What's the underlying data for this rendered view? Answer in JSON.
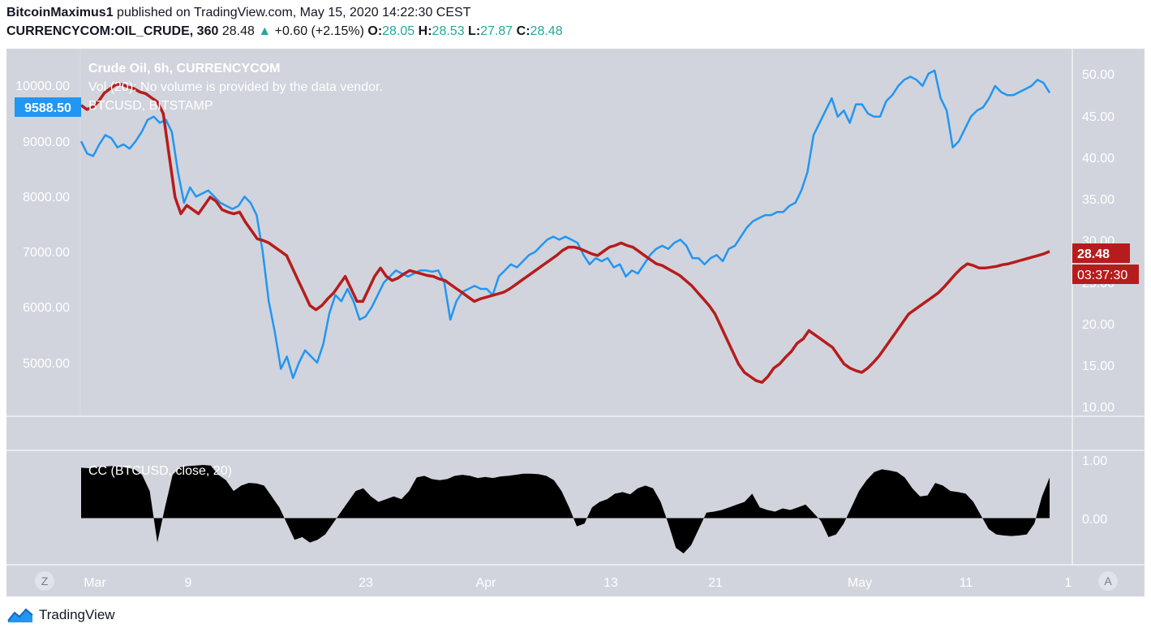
{
  "header": {
    "author": "BitcoinMaximus1",
    "published_text": "published on TradingView.com, May 15, 2020 14:22:30 CEST",
    "symbol": "CURRENCYCOM:OIL_CRUDE, 360",
    "last": "28.48",
    "change": "+0.60 (+2.15%)",
    "open_label": "O:",
    "open": "28.05",
    "high_label": "H:",
    "high": "28.53",
    "low_label": "L:",
    "low": "27.87",
    "close_label": "C:",
    "close": "28.48"
  },
  "legend": {
    "main": "Crude Oil, 6h, CURRENCYCOM",
    "volume": "Vol (20): No volume is provided by the data vendor.",
    "compare": "BTCUSD, BITSTAMP",
    "indicator": "CC (BTCUSD, close, 20)"
  },
  "price_badges": {
    "btc": "9588.50",
    "oil": "28.48",
    "countdown": "03:37:30"
  },
  "left_axis_ticks": [
    "10000.00",
    "9000.00",
    "8000.00",
    "7000.00",
    "6000.00",
    "5000.00"
  ],
  "right_axis_ticks": [
    "50.00",
    "45.00",
    "40.00",
    "35.00",
    "30.00",
    "25.00",
    "20.00",
    "15.00",
    "10.00"
  ],
  "cc_axis_ticks": [
    "1.00",
    "0.00"
  ],
  "time_axis_labels": [
    "Mar",
    "9",
    "23",
    "Apr",
    "13",
    "21",
    "May",
    "11",
    "1"
  ],
  "buttons": {
    "left": "Z",
    "right": "A"
  },
  "footer_brand": "TradingView",
  "colors": {
    "btc": "#2196f3",
    "oil": "#b71c1c",
    "badge_btc": "#2196f3",
    "badge_oil": "#b71c1c",
    "background": "#d1d4dc"
  },
  "chart_data": {
    "type": "line",
    "x_labels": [
      "Mar",
      "9",
      "23",
      "Apr",
      "13",
      "21",
      "May",
      "11"
    ],
    "series": [
      {
        "name": "BTCUSD, BITSTAMP",
        "axis": "left",
        "ylim": [
          4500,
          10200
        ],
        "values": [
          8800,
          8600,
          8560,
          8750,
          8900,
          8850,
          8700,
          8750,
          8680,
          8800,
          8950,
          9150,
          9200,
          9100,
          9150,
          8950,
          8300,
          7800,
          8050,
          7900,
          7950,
          8000,
          7900,
          7800,
          7750,
          7700,
          7750,
          7900,
          7800,
          7600,
          7000,
          6200,
          5700,
          5100,
          5300,
          4950,
          5200,
          5400,
          5300,
          5200,
          5500,
          6000,
          6300,
          6200,
          6400,
          6200,
          5900,
          5950,
          6100,
          6300,
          6500,
          6600,
          6700,
          6650,
          6600,
          6650,
          6700,
          6700,
          6680,
          6700,
          6500,
          5900,
          6200,
          6350,
          6400,
          6450,
          6400,
          6400,
          6300,
          6600,
          6700,
          6800,
          6750,
          6850,
          6950,
          7000,
          7100,
          7200,
          7250,
          7200,
          7250,
          7200,
          7150,
          6950,
          6800,
          6900,
          6850,
          6900,
          6750,
          6800,
          6600,
          6700,
          6650,
          6800,
          6950,
          7050,
          7100,
          7050,
          7150,
          7200,
          7100,
          6900,
          6900,
          6800,
          6900,
          6950,
          6850,
          7050,
          7100,
          7250,
          7400,
          7500,
          7550,
          7600,
          7600,
          7650,
          7650,
          7750,
          7800,
          8000,
          8300,
          8900,
          9100,
          9300,
          9500,
          9200,
          9300,
          9100,
          9400,
          9400,
          9250,
          9200,
          9200,
          9450,
          9550,
          9700,
          9800,
          9850,
          9800,
          9700,
          9900,
          9950,
          9500,
          9300,
          8700,
          8800,
          9000,
          9200,
          9300,
          9350,
          9500,
          9700,
          9600,
          9550,
          9550,
          9600,
          9650,
          9700,
          9800,
          9750,
          9588.5
        ]
      },
      {
        "name": "Crude Oil, 6h, CURRENCYCOM",
        "axis": "right",
        "ylim": [
          10,
          52
        ],
        "values": [
          46.0,
          45.5,
          45.8,
          46.5,
          47.5,
          48.0,
          48.5,
          48.5,
          48.2,
          48.0,
          47.6,
          47.4,
          46.9,
          46.4,
          45.0,
          40.0,
          35.0,
          33.0,
          34.0,
          33.5,
          33.0,
          34.0,
          35.0,
          34.5,
          33.5,
          33.2,
          33.0,
          33.2,
          32.0,
          31.0,
          30.0,
          29.8,
          29.5,
          29.0,
          28.5,
          28.0,
          26.5,
          25.0,
          23.5,
          22.0,
          21.5,
          22.0,
          22.8,
          23.5,
          24.5,
          25.5,
          24.0,
          22.5,
          22.5,
          24.0,
          25.5,
          26.5,
          25.5,
          25.0,
          25.3,
          25.8,
          26.2,
          26.0,
          25.8,
          25.6,
          25.5,
          25.2,
          25.0,
          24.5,
          24.0,
          23.5,
          23.0,
          22.5,
          22.8,
          23.0,
          23.2,
          23.4,
          23.6,
          24.0,
          24.5,
          25.0,
          25.5,
          26.0,
          26.5,
          27.0,
          27.5,
          28.0,
          28.6,
          29.0,
          29.0,
          28.8,
          28.5,
          28.2,
          28.0,
          28.5,
          29.0,
          29.2,
          29.5,
          29.2,
          29.0,
          28.5,
          28.0,
          27.5,
          27.0,
          26.8,
          26.4,
          26.0,
          25.6,
          25.0,
          24.4,
          23.6,
          22.8,
          22.0,
          21.0,
          19.5,
          18.0,
          16.5,
          15.0,
          14.0,
          13.5,
          13.0,
          12.8,
          13.5,
          14.5,
          15.0,
          15.8,
          16.5,
          17.5,
          18.0,
          19.0,
          18.5,
          18.0,
          17.5,
          17.0,
          16.0,
          15.0,
          14.5,
          14.2,
          14.0,
          14.5,
          15.2,
          16.0,
          17.0,
          18.0,
          19.0,
          20.0,
          21.0,
          21.5,
          22.0,
          22.5,
          23.0,
          23.5,
          24.2,
          25.0,
          25.8,
          26.5,
          27.0,
          26.8,
          26.5,
          26.5,
          26.6,
          26.7,
          26.9,
          27.0,
          27.2,
          27.4,
          27.6,
          27.8,
          28.0,
          28.2,
          28.48
        ]
      },
      {
        "name": "CC (BTCUSD, close, 20)",
        "axis": "cc",
        "ylim": [
          -0.8,
          1.1
        ],
        "values": [
          0.93,
          0.92,
          0.94,
          0.95,
          0.96,
          0.95,
          0.93,
          0.9,
          0.8,
          0.5,
          -0.45,
          0.2,
          0.8,
          0.94,
          0.96,
          0.97,
          0.98,
          0.97,
          0.8,
          0.7,
          0.5,
          0.6,
          0.65,
          0.64,
          0.6,
          0.4,
          0.2,
          -0.1,
          -0.4,
          -0.35,
          -0.45,
          -0.4,
          -0.3,
          -0.1,
          0.1,
          0.3,
          0.5,
          0.55,
          0.4,
          0.3,
          0.35,
          0.4,
          0.35,
          0.5,
          0.75,
          0.78,
          0.72,
          0.7,
          0.72,
          0.78,
          0.8,
          0.78,
          0.74,
          0.76,
          0.74,
          0.77,
          0.78,
          0.8,
          0.82,
          0.82,
          0.81,
          0.78,
          0.7,
          0.5,
          0.2,
          -0.15,
          -0.1,
          0.2,
          0.3,
          0.35,
          0.45,
          0.48,
          0.44,
          0.55,
          0.6,
          0.55,
          0.3,
          -0.1,
          -0.55,
          -0.65,
          -0.5,
          -0.2,
          0.1,
          0.12,
          0.15,
          0.2,
          0.25,
          0.3,
          0.45,
          0.2,
          0.15,
          0.12,
          0.18,
          0.15,
          0.2,
          0.25,
          0.1,
          -0.05,
          -0.35,
          -0.3,
          -0.1,
          0.2,
          0.5,
          0.7,
          0.85,
          0.9,
          0.88,
          0.85,
          0.75,
          0.55,
          0.4,
          0.42,
          0.65,
          0.6,
          0.5,
          0.48,
          0.45,
          0.3,
          0.05,
          -0.2,
          -0.3,
          -0.32,
          -0.33,
          -0.32,
          -0.3,
          -0.1,
          0.4,
          0.75
        ]
      }
    ]
  }
}
